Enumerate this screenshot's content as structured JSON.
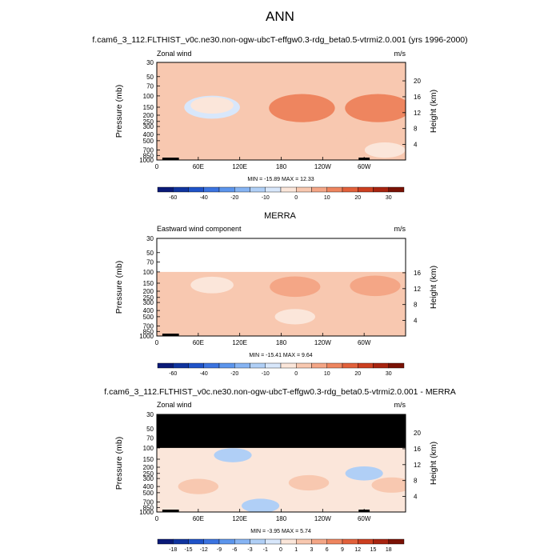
{
  "figure": {
    "title": "ANN",
    "subtitle1": "f.cam6_3_112.FLTHIST_v0c.ne30.non-ogw-ubcT-effgw0.3-rdg_beta0.5-vtrmi2.0.001 (yrs 1996-2000)",
    "subtitle2": "MERRA",
    "subtitle3": "f.cam6_3_112.FLTHIST_v0c.ne30.non-ogw-ubcT-effgw0.3-rdg_beta0.5-vtrmi2.0.001 - MERRA"
  },
  "chart_data": [
    {
      "type": "heatmap",
      "left_label": "Zonal wind",
      "units": "m/s",
      "ylabel": "Pressure (mb)",
      "ylabel_right": "Height (km)",
      "p_ticks": [
        "30",
        "50",
        "70",
        "100",
        "150",
        "200",
        "250",
        "300",
        "400",
        "500",
        "700",
        "850",
        "1000"
      ],
      "z_ticks": [
        "20",
        "16",
        "12",
        "8",
        "4"
      ],
      "x_ticks": [
        "0",
        "60E",
        "120E",
        "180",
        "120W",
        "60W"
      ],
      "stats": "MIN = -15.89  MAX = 12.33",
      "colorbar": {
        "labels": [
          "-60",
          "-40",
          "-20",
          "-10",
          "0",
          "10",
          "20",
          "30"
        ],
        "colors": [
          "#0a1a78",
          "#10349f",
          "#1f53c8",
          "#3b74e0",
          "#5c95ec",
          "#86b4f3",
          "#b0cff6",
          "#d8e7fb",
          "#fbe6da",
          "#f8c8b0",
          "#f4a686",
          "#ee855f",
          "#e2613b",
          "#cc3f20",
          "#a82410",
          "#7a1205"
        ]
      },
      "z_ranges": {
        "z_max": 22,
        "masked_above_hpa": null
      },
      "fields": {
        "background_ms": 1,
        "regions": [
          {
            "lon": 340,
            "hpa": 60,
            "value_ms": 5
          },
          {
            "lon": 80,
            "hpa": 150,
            "value_ms": -8
          },
          {
            "lon": 80,
            "hpa": 140,
            "value_ms": -3
          },
          {
            "lon": 210,
            "hpa": 160,
            "value_ms": 6
          },
          {
            "lon": 210,
            "hpa": 160,
            "value_ms": 10
          },
          {
            "lon": 210,
            "hpa": 155,
            "value_ms": 12
          },
          {
            "lon": 318,
            "hpa": 160,
            "value_ms": 6
          },
          {
            "lon": 318,
            "hpa": 160,
            "value_ms": 10
          },
          {
            "lon": 320,
            "hpa": 155,
            "value_ms": 12
          },
          {
            "lon": 45,
            "hpa": 280,
            "value_ms": 3
          },
          {
            "lon": 300,
            "hpa": 380,
            "value_ms": 4
          },
          {
            "lon": 110,
            "hpa": 620,
            "value_ms": 3
          },
          {
            "lon": 330,
            "hpa": 700,
            "value_ms": -2
          }
        ]
      },
      "topography": [
        {
          "lon_start": 8,
          "lon_end": 22
        },
        {
          "lon_start": 22,
          "lon_end": 32
        },
        {
          "lon_start": 292,
          "lon_end": 308
        }
      ]
    },
    {
      "type": "heatmap",
      "left_label": "Eastward wind component",
      "units": "m/s",
      "ylabel": "Pressure (mb)",
      "ylabel_right": "Height (km)",
      "p_ticks": [
        "30",
        "50",
        "70",
        "100",
        "150",
        "200",
        "250",
        "300",
        "400",
        "500",
        "700",
        "850",
        "1000"
      ],
      "z_ticks": [
        "16",
        "12",
        "8",
        "4"
      ],
      "x_ticks": [
        "0",
        "60E",
        "120E",
        "180",
        "120W",
        "60W"
      ],
      "stats": "MIN = -15.41  MAX =  9.64",
      "colorbar": {
        "labels": [
          "-60",
          "-40",
          "-20",
          "-10",
          "0",
          "10",
          "20",
          "30"
        ],
        "colors": [
          "#0a1a78",
          "#10349f",
          "#1f53c8",
          "#3b74e0",
          "#5c95ec",
          "#86b4f3",
          "#b0cff6",
          "#d8e7fb",
          "#fbe6da",
          "#f8c8b0",
          "#f4a686",
          "#ee855f",
          "#e2613b",
          "#cc3f20",
          "#a82410",
          "#7a1205"
        ]
      },
      "z_ranges": {
        "z_max": 17,
        "masked_above_hpa": 100
      },
      "fields": {
        "background_ms": 1,
        "regions": [
          {
            "lon": 80,
            "hpa": 160,
            "value_ms": -3
          },
          {
            "lon": 200,
            "hpa": 170,
            "value_ms": 6
          },
          {
            "lon": 316,
            "hpa": 165,
            "value_ms": 6
          },
          {
            "lon": 200,
            "hpa": 500,
            "value_ms": -2
          },
          {
            "lon": 80,
            "hpa": 420,
            "value_ms": 3
          }
        ]
      },
      "topography": [
        {
          "lon_start": 8,
          "lon_end": 22
        },
        {
          "lon_start": 22,
          "lon_end": 32
        }
      ]
    },
    {
      "type": "heatmap",
      "left_label": "Zonal wind",
      "units": "m/s",
      "ylabel": "Pressure (mb)",
      "ylabel_right": "Height (km)",
      "p_ticks": [
        "30",
        "50",
        "70",
        "100",
        "150",
        "200",
        "250",
        "300",
        "400",
        "500",
        "700",
        "850",
        "1000"
      ],
      "z_ticks": [
        "20",
        "16",
        "12",
        "8",
        "4"
      ],
      "x_ticks": [
        "0",
        "60E",
        "120E",
        "180",
        "120W",
        "60W"
      ],
      "stats": "MIN = -3.95  MAX =  5.74",
      "colorbar": {
        "labels": [
          "-18",
          "-15",
          "-12",
          "-9",
          "-6",
          "-3",
          "-1",
          "0",
          "1",
          "3",
          "6",
          "9",
          "12",
          "15",
          "18"
        ],
        "colors": [
          "#0a1a78",
          "#10349f",
          "#1f53c8",
          "#3b74e0",
          "#5c95ec",
          "#86b4f3",
          "#b0cff6",
          "#d8e7fb",
          "#fbe6da",
          "#f8c8b0",
          "#f4a686",
          "#ee855f",
          "#e2613b",
          "#cc3f20",
          "#a82410",
          "#7a1205"
        ]
      },
      "z_ranges": {
        "z_max": 22,
        "masked_above_hpa": 100
      },
      "fields": {
        "background_ms": 0.5,
        "regions": [
          {
            "lon": 60,
            "hpa": 400,
            "value_ms": 2
          },
          {
            "lon": 220,
            "hpa": 350,
            "value_ms": 2
          },
          {
            "lon": 340,
            "hpa": 380,
            "value_ms": 2
          },
          {
            "lon": 110,
            "hpa": 130,
            "value_ms": -1
          },
          {
            "lon": 300,
            "hpa": 250,
            "value_ms": -1
          },
          {
            "lon": 150,
            "hpa": 800,
            "value_ms": -1
          }
        ]
      },
      "topography": [
        {
          "lon_start": 8,
          "lon_end": 22
        },
        {
          "lon_start": 22,
          "lon_end": 32
        },
        {
          "lon_start": 292,
          "lon_end": 308
        }
      ]
    }
  ]
}
